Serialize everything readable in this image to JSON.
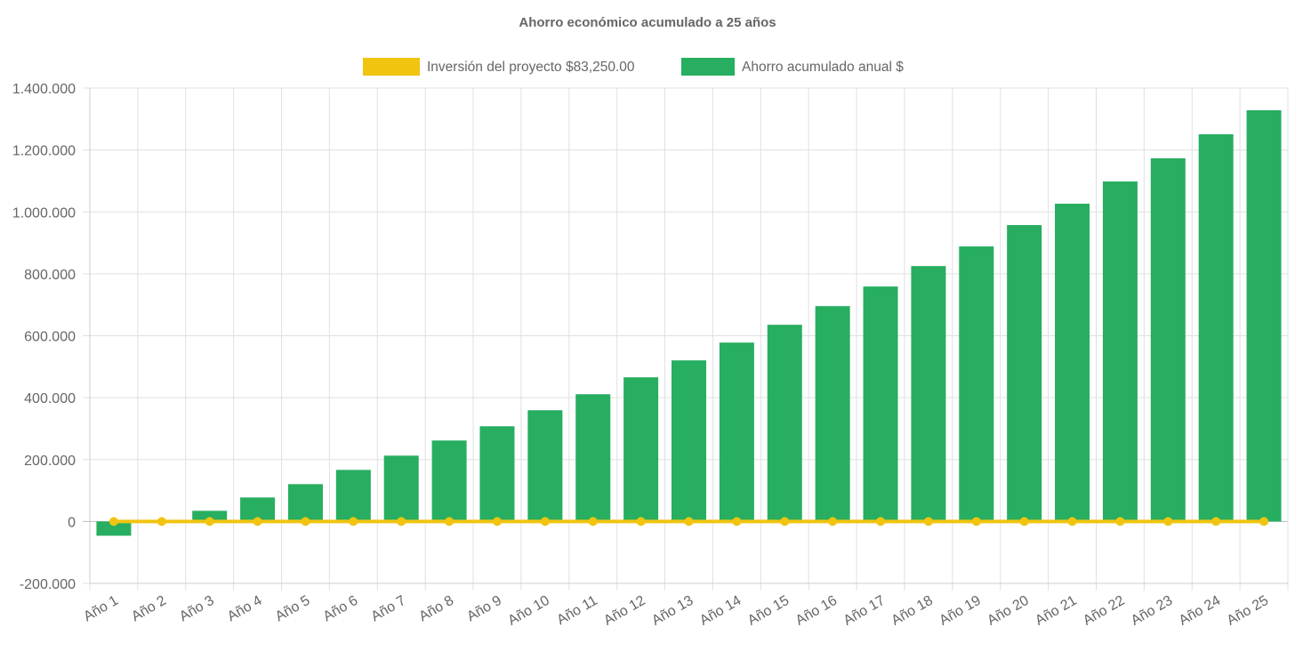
{
  "chart_data": {
    "type": "bar",
    "title": "Ahorro económico acumulado a 25 años",
    "categories": [
      "Año 1",
      "Año 2",
      "Año 3",
      "Año 4",
      "Año 5",
      "Año 6",
      "Año 7",
      "Año 8",
      "Año 9",
      "Año 10",
      "Año 11",
      "Año 12",
      "Año 13",
      "Año 14",
      "Año 15",
      "Año 16",
      "Año 17",
      "Año 18",
      "Año 19",
      "Año 20",
      "Año 21",
      "Año 22",
      "Año 23",
      "Año 24",
      "Año 25"
    ],
    "series": [
      {
        "name": "Inversión del proyecto $83,250.00",
        "type": "line",
        "color": "#f1c40f",
        "values": [
          0,
          0,
          0,
          0,
          0,
          0,
          0,
          0,
          0,
          0,
          0,
          0,
          0,
          0,
          0,
          0,
          0,
          0,
          0,
          0,
          0,
          0,
          0,
          0,
          0
        ]
      },
      {
        "name": "Ahorro acumulado anual $",
        "type": "bar",
        "color": "#27ae60",
        "values": [
          -46000,
          0,
          34500,
          77600,
          120700,
          166700,
          212700,
          261600,
          307600,
          359400,
          411100,
          465700,
          520400,
          577900,
          635400,
          695700,
          759000,
          825000,
          888400,
          957400,
          1026400,
          1098200,
          1173000,
          1250600,
          1328200
        ]
      }
    ],
    "ylim": [
      -200000,
      1400000
    ],
    "yticks": [
      -200000,
      0,
      200000,
      400000,
      600000,
      800000,
      1000000,
      1200000,
      1400000
    ],
    "ytick_labels": [
      "-200.000",
      "0",
      "200.000",
      "400.000",
      "600.000",
      "800.000",
      "1.000.000",
      "1.200.000",
      "1.400.000"
    ],
    "grid": true,
    "legend_position": "top"
  }
}
